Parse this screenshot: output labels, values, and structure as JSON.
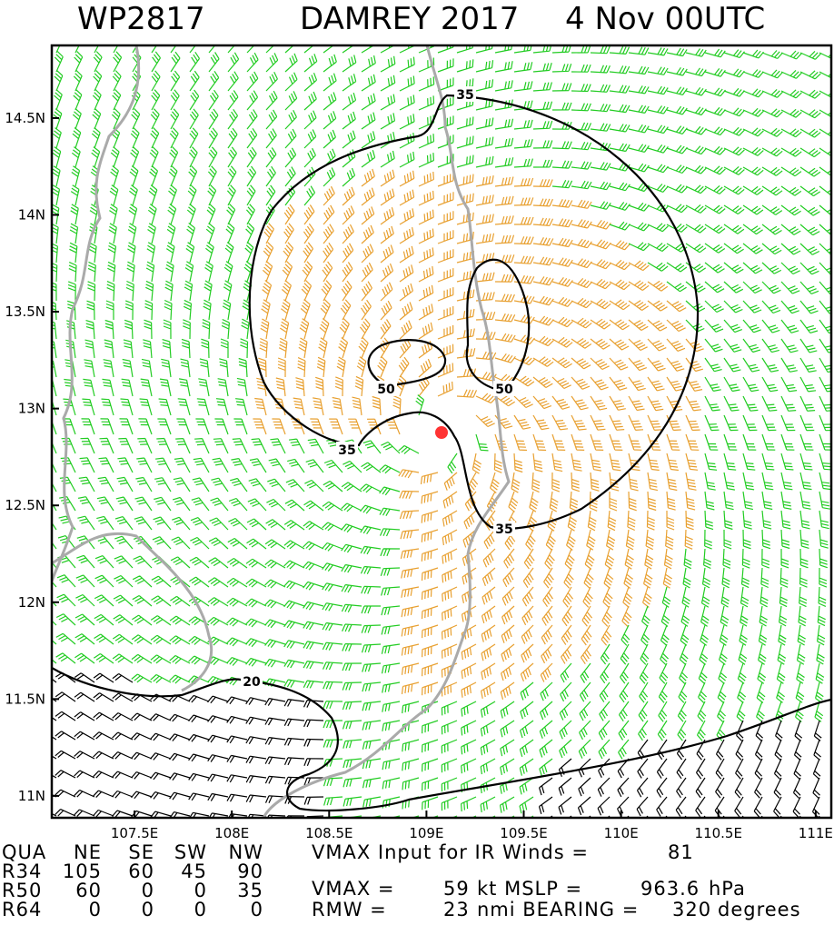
{
  "header": {
    "id": "WP2817",
    "storm": "DAMREY 2017",
    "time": "4 Nov 00UTC"
  },
  "map": {
    "xlim": [
      107.075,
      111.08
    ],
    "ylim": [
      10.887,
      14.875
    ],
    "xticks": [
      {
        "value": 107.5,
        "label": "107.5E"
      },
      {
        "value": 108,
        "label": "108E"
      },
      {
        "value": 108.5,
        "label": "108.5E"
      },
      {
        "value": 109,
        "label": "109E"
      },
      {
        "value": 109.5,
        "label": "109.5E"
      },
      {
        "value": 110,
        "label": "110E"
      },
      {
        "value": 110.5,
        "label": "110.5E"
      },
      {
        "value": 111,
        "label": "111E"
      }
    ],
    "yticks": [
      {
        "value": 14.5,
        "label": "14.5N"
      },
      {
        "value": 14,
        "label": "14N"
      },
      {
        "value": 13.5,
        "label": "13.5N"
      },
      {
        "value": 13,
        "label": "13N"
      },
      {
        "value": 12.5,
        "label": "12.5N"
      },
      {
        "value": 12,
        "label": "12N"
      },
      {
        "value": 11.5,
        "label": "11.5N"
      },
      {
        "value": 11,
        "label": "11N"
      }
    ],
    "contour_labels": [
      35,
      50,
      50,
      35,
      35,
      20
    ]
  },
  "table": {
    "rows": [
      [
        "QUA",
        "NE",
        "SE",
        "SW",
        "NW"
      ],
      [
        "R34",
        105,
        60,
        45,
        90
      ],
      [
        "R50",
        60,
        0,
        0,
        35
      ],
      [
        "R64",
        0,
        0,
        0,
        0
      ]
    ]
  },
  "info": {
    "line1": "VMAX Input for IR Winds =",
    "vmax_input": 81,
    "vmax_label": "VMAX =",
    "vmax": 59,
    "mslp_label": "kt MSLP =",
    "mslp": 963.6,
    "mslp_unit": "hPa",
    "rmw_label": "RMW =",
    "rmw": 23,
    "bearing_label": "nmi BEARING =",
    "bearing": 320,
    "bearing_unit": "degrees"
  }
}
